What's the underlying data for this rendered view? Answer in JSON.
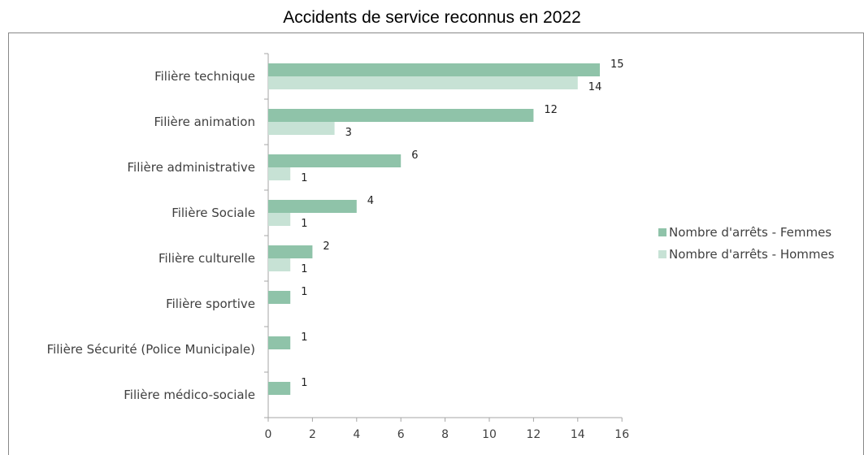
{
  "chart_data": {
    "type": "bar",
    "orientation": "horizontal",
    "title": "Accidents de service reconnus en 2022",
    "categories": [
      "Filière technique",
      "Filière animation",
      "Filière administrative",
      "Filière Sociale",
      "Filière culturelle",
      "Filière sportive",
      "Filière Sécurité (Police Municipale)",
      "Filière médico-sociale"
    ],
    "series": [
      {
        "name": "Nombre d'arrêts - Femmes",
        "color": "#8fc3a9",
        "values": [
          15,
          12,
          6,
          4,
          2,
          1,
          1,
          1
        ]
      },
      {
        "name": "Nombre d'arrêts - Hommes",
        "color": "#c7e2d5",
        "values": [
          14,
          3,
          1,
          1,
          1,
          null,
          null,
          null
        ]
      }
    ],
    "xlim": [
      0,
      16
    ],
    "xticks": [
      0,
      2,
      4,
      6,
      8,
      10,
      12,
      14,
      16
    ],
    "grid": false,
    "legend_position": "right"
  }
}
